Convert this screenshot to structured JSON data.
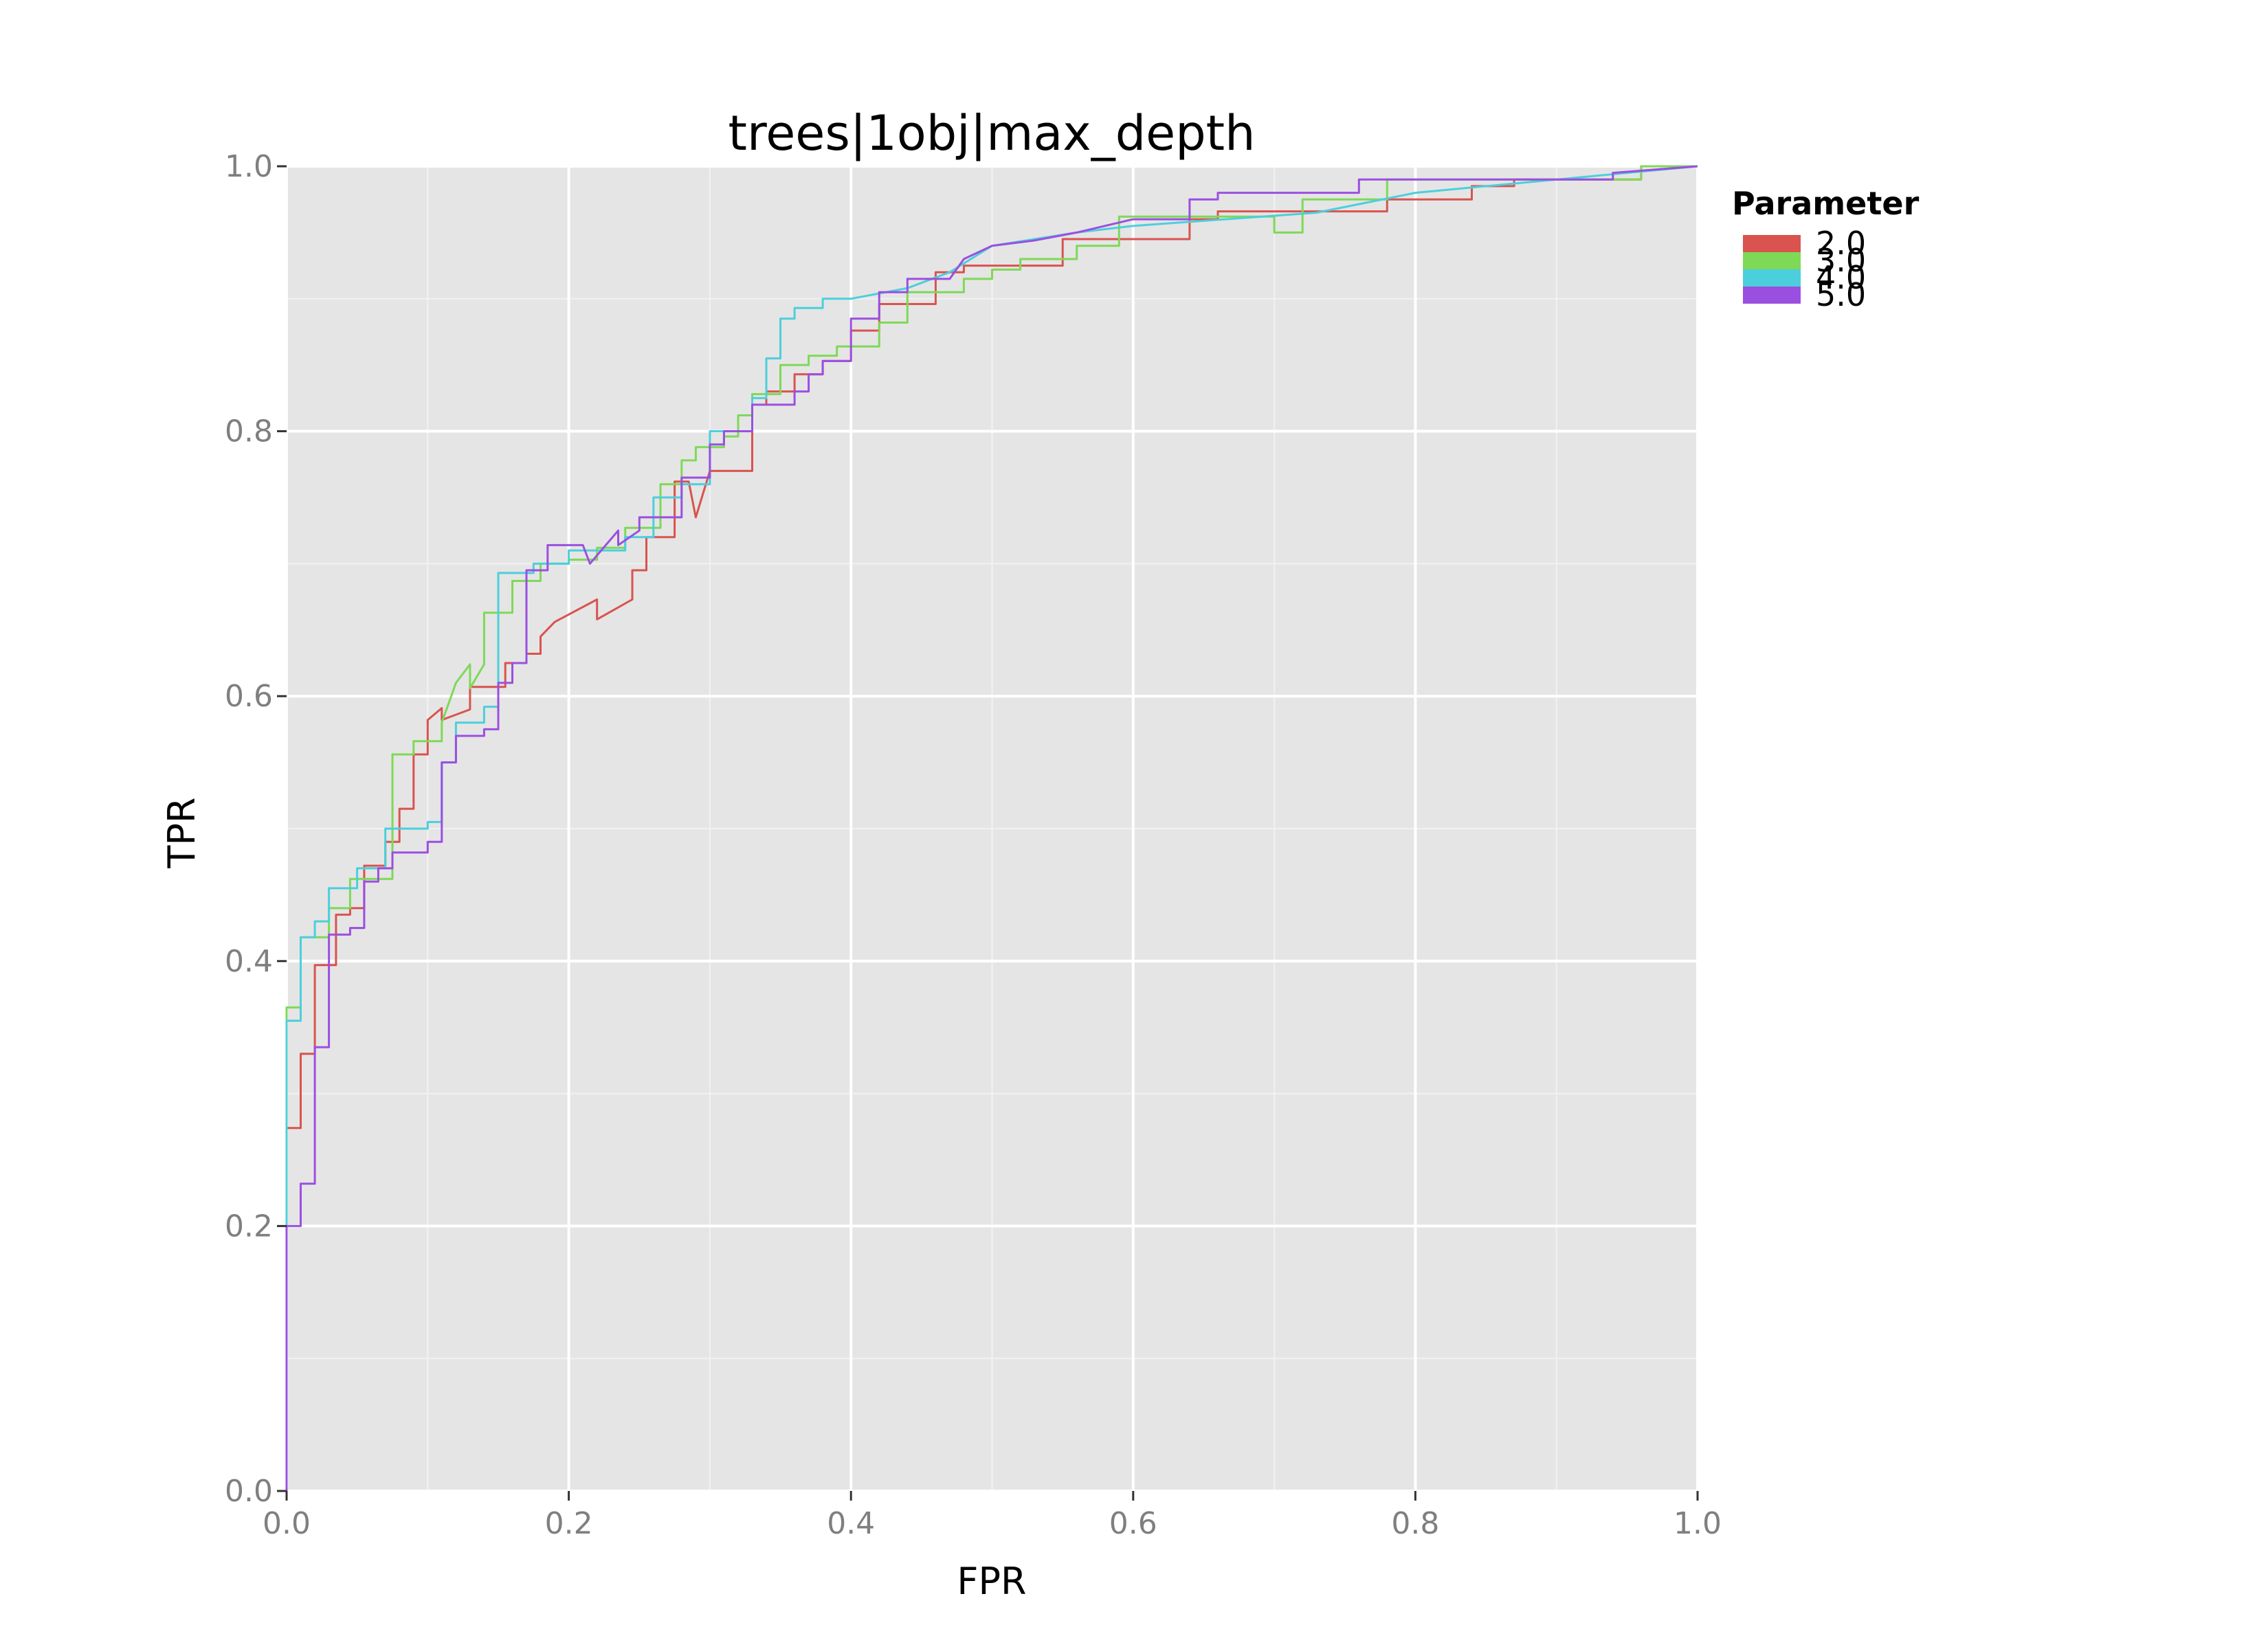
{
  "chart_data": {
    "type": "line",
    "title": "trees|1obj|max_depth",
    "xlabel": "FPR",
    "ylabel": "TPR",
    "xlim": [
      0,
      1
    ],
    "ylim": [
      0,
      1
    ],
    "xticks": [
      "0.0",
      "0.2",
      "0.4",
      "0.6",
      "0.8",
      "1.0"
    ],
    "yticks": [
      "0.0",
      "0.2",
      "0.4",
      "0.6",
      "0.8",
      "1.0"
    ],
    "grid": true,
    "legend": {
      "title": "Parameter",
      "position": "right"
    },
    "series": [
      {
        "name": "2.0",
        "color": "#d9534f",
        "x": [
          0,
          0,
          0.01,
          0.01,
          0.02,
          0.02,
          0.035,
          0.035,
          0.045,
          0.045,
          0.055,
          0.055,
          0.07,
          0.07,
          0.08,
          0.08,
          0.09,
          0.09,
          0.1,
          0.1,
          0.11,
          0.11,
          0.13,
          0.13,
          0.155,
          0.155,
          0.17,
          0.17,
          0.18,
          0.18,
          0.19,
          0.22,
          0.22,
          0.245,
          0.245,
          0.255,
          0.255,
          0.275,
          0.275,
          0.285,
          0.29,
          0.3,
          0.3,
          0.33,
          0.33,
          0.34,
          0.34,
          0.36,
          0.36,
          0.38,
          0.38,
          0.4,
          0.4,
          0.42,
          0.42,
          0.46,
          0.46,
          0.48,
          0.48,
          0.55,
          0.55,
          0.64,
          0.64,
          0.66,
          0.66,
          0.78,
          0.78,
          0.84,
          0.84,
          0.87,
          0.87,
          0.96,
          0.96,
          1.0
        ],
        "y": [
          0,
          0.274,
          0.274,
          0.33,
          0.33,
          0.397,
          0.397,
          0.435,
          0.435,
          0.44,
          0.44,
          0.472,
          0.472,
          0.49,
          0.49,
          0.515,
          0.515,
          0.556,
          0.556,
          0.582,
          0.591,
          0.582,
          0.59,
          0.607,
          0.607,
          0.625,
          0.625,
          0.632,
          0.632,
          0.645,
          0.656,
          0.673,
          0.658,
          0.673,
          0.695,
          0.695,
          0.72,
          0.72,
          0.762,
          0.762,
          0.735,
          0.77,
          0.77,
          0.77,
          0.82,
          0.82,
          0.83,
          0.83,
          0.843,
          0.843,
          0.853,
          0.853,
          0.876,
          0.876,
          0.896,
          0.896,
          0.92,
          0.92,
          0.925,
          0.925,
          0.945,
          0.945,
          0.96,
          0.96,
          0.966,
          0.966,
          0.975,
          0.975,
          0.985,
          0.985,
          0.99,
          0.99,
          1.0,
          1.0
        ]
      },
      {
        "name": "3.0",
        "color": "#7ed957",
        "x": [
          0,
          0,
          0.01,
          0.01,
          0.03,
          0.03,
          0.045,
          0.045,
          0.075,
          0.075,
          0.09,
          0.09,
          0.11,
          0.11,
          0.12,
          0.13,
          0.13,
          0.14,
          0.14,
          0.16,
          0.16,
          0.18,
          0.18,
          0.2,
          0.2,
          0.22,
          0.22,
          0.24,
          0.24,
          0.265,
          0.265,
          0.28,
          0.28,
          0.29,
          0.29,
          0.31,
          0.31,
          0.32,
          0.32,
          0.33,
          0.33,
          0.35,
          0.35,
          0.37,
          0.37,
          0.39,
          0.39,
          0.42,
          0.42,
          0.44,
          0.44,
          0.48,
          0.48,
          0.5,
          0.5,
          0.52,
          0.52,
          0.56,
          0.56,
          0.59,
          0.59,
          0.7,
          0.7,
          0.72,
          0.72,
          0.78,
          0.78,
          0.96,
          0.96,
          1.0
        ],
        "y": [
          0,
          0.365,
          0.365,
          0.418,
          0.418,
          0.44,
          0.44,
          0.462,
          0.462,
          0.556,
          0.556,
          0.566,
          0.566,
          0.58,
          0.61,
          0.624,
          0.606,
          0.624,
          0.663,
          0.663,
          0.687,
          0.687,
          0.7,
          0.7,
          0.703,
          0.703,
          0.712,
          0.712,
          0.727,
          0.727,
          0.76,
          0.76,
          0.778,
          0.778,
          0.788,
          0.788,
          0.796,
          0.796,
          0.812,
          0.812,
          0.828,
          0.828,
          0.85,
          0.85,
          0.857,
          0.857,
          0.864,
          0.864,
          0.882,
          0.882,
          0.905,
          0.905,
          0.915,
          0.915,
          0.922,
          0.922,
          0.93,
          0.93,
          0.94,
          0.94,
          0.962,
          0.962,
          0.95,
          0.95,
          0.975,
          0.975,
          0.99,
          0.99,
          1.0,
          1.0
        ]
      },
      {
        "name": "4.0",
        "color": "#4ccfdc",
        "x": [
          0,
          0,
          0.01,
          0.01,
          0.02,
          0.02,
          0.03,
          0.03,
          0.05,
          0.05,
          0.07,
          0.07,
          0.1,
          0.1,
          0.11,
          0.11,
          0.12,
          0.12,
          0.14,
          0.14,
          0.15,
          0.15,
          0.175,
          0.175,
          0.2,
          0.2,
          0.24,
          0.24,
          0.26,
          0.26,
          0.28,
          0.28,
          0.3,
          0.3,
          0.33,
          0.33,
          0.34,
          0.34,
          0.35,
          0.35,
          0.36,
          0.36,
          0.38,
          0.38,
          0.4,
          0.44,
          0.44,
          0.47,
          0.47,
          0.5,
          0.5,
          0.56,
          0.56,
          0.6,
          0.6,
          0.73,
          0.73,
          0.8,
          0.8,
          1.0
        ],
        "y": [
          0,
          0.355,
          0.355,
          0.418,
          0.418,
          0.43,
          0.43,
          0.455,
          0.455,
          0.47,
          0.47,
          0.5,
          0.5,
          0.505,
          0.505,
          0.55,
          0.55,
          0.58,
          0.58,
          0.592,
          0.592,
          0.693,
          0.693,
          0.7,
          0.7,
          0.71,
          0.71,
          0.72,
          0.72,
          0.75,
          0.75,
          0.76,
          0.76,
          0.8,
          0.8,
          0.825,
          0.825,
          0.855,
          0.855,
          0.885,
          0.885,
          0.893,
          0.893,
          0.9,
          0.9,
          0.908,
          0.908,
          0.92,
          0.92,
          0.94,
          0.94,
          0.95,
          0.95,
          0.955,
          0.955,
          0.965,
          0.965,
          0.98,
          0.98,
          1.0
        ]
      },
      {
        "name": "5.0",
        "color": "#9b4fe0",
        "x": [
          0,
          0,
          0.01,
          0.01,
          0.02,
          0.02,
          0.03,
          0.03,
          0.045,
          0.045,
          0.055,
          0.055,
          0.065,
          0.065,
          0.075,
          0.075,
          0.1,
          0.1,
          0.11,
          0.11,
          0.12,
          0.12,
          0.14,
          0.14,
          0.15,
          0.15,
          0.16,
          0.16,
          0.17,
          0.17,
          0.185,
          0.185,
          0.21,
          0.215,
          0.235,
          0.235,
          0.25,
          0.25,
          0.28,
          0.28,
          0.3,
          0.3,
          0.31,
          0.31,
          0.33,
          0.33,
          0.36,
          0.36,
          0.37,
          0.37,
          0.38,
          0.38,
          0.4,
          0.4,
          0.42,
          0.42,
          0.44,
          0.44,
          0.47,
          0.48,
          0.48,
          0.5,
          0.5,
          0.53,
          0.53,
          0.56,
          0.56,
          0.6,
          0.64,
          0.64,
          0.66,
          0.66,
          0.76,
          0.76,
          0.94,
          0.94,
          1.0
        ],
        "y": [
          0,
          0.2,
          0.2,
          0.232,
          0.232,
          0.335,
          0.335,
          0.42,
          0.42,
          0.425,
          0.425,
          0.46,
          0.46,
          0.47,
          0.47,
          0.482,
          0.482,
          0.49,
          0.49,
          0.55,
          0.55,
          0.57,
          0.57,
          0.575,
          0.575,
          0.61,
          0.61,
          0.625,
          0.625,
          0.695,
          0.695,
          0.714,
          0.714,
          0.7,
          0.725,
          0.714,
          0.725,
          0.735,
          0.735,
          0.765,
          0.765,
          0.79,
          0.79,
          0.8,
          0.8,
          0.82,
          0.82,
          0.83,
          0.83,
          0.843,
          0.843,
          0.853,
          0.853,
          0.885,
          0.885,
          0.905,
          0.905,
          0.915,
          0.915,
          0.93,
          0.93,
          0.94,
          0.94,
          0.944,
          0.944,
          0.95,
          0.95,
          0.96,
          0.96,
          0.975,
          0.975,
          0.98,
          0.98,
          0.99,
          0.99,
          0.995,
          1.0
        ]
      }
    ]
  }
}
